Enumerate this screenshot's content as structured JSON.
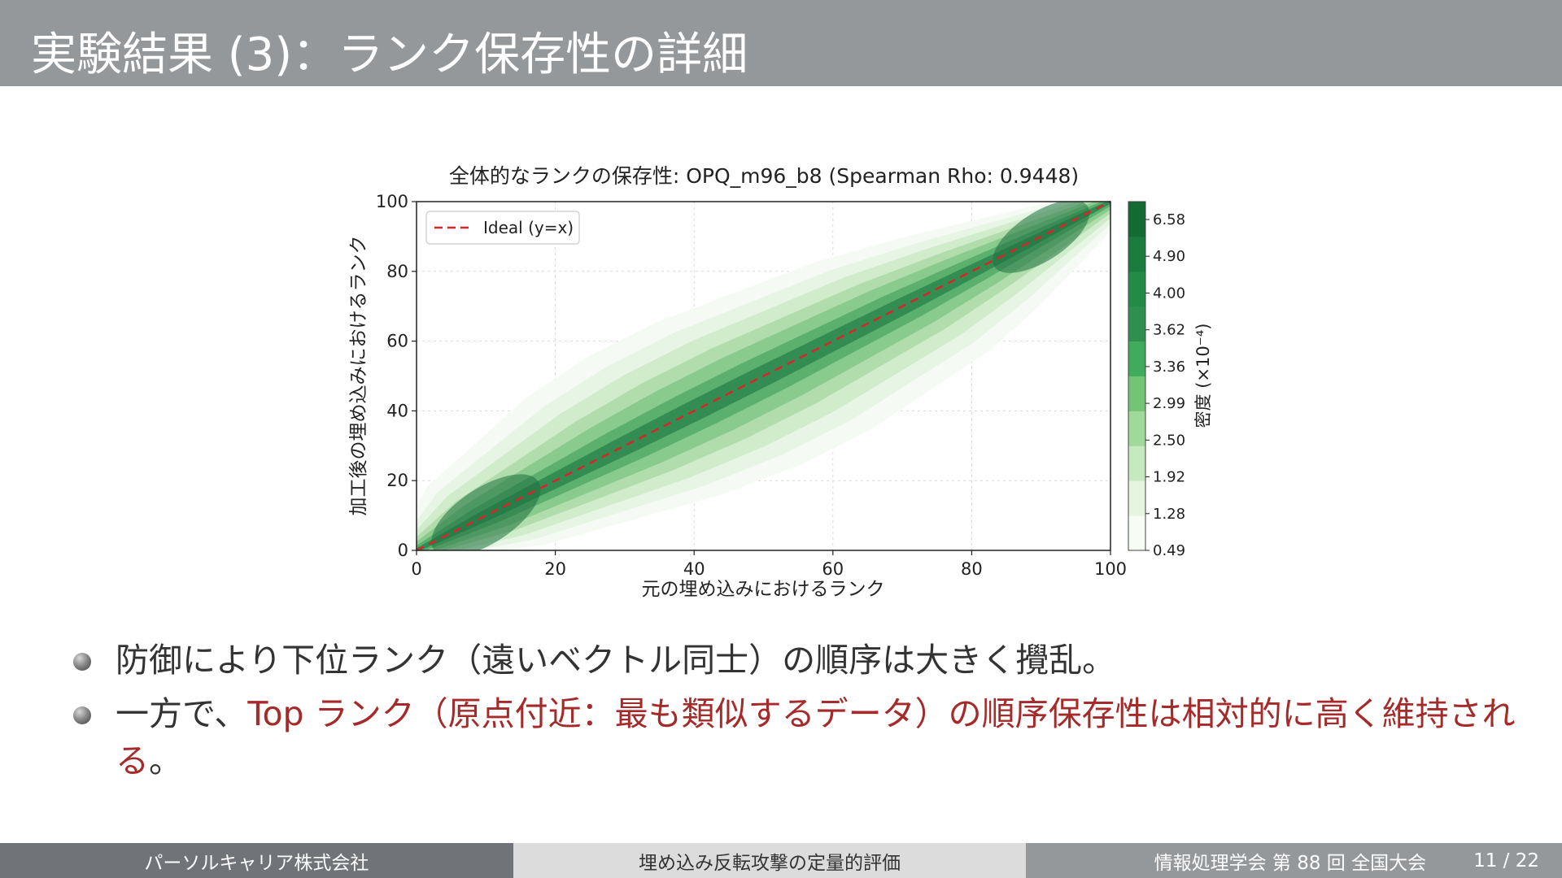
{
  "slide": {
    "title": "実験結果 (3)：ランク保存性の詳細"
  },
  "chart_data": {
    "type": "heatmap",
    "title": "全体的なランクの保存性: OPQ_m96_b8 (Spearman Rho: 0.9448)",
    "xlabel": "元の埋め込みにおけるランク",
    "ylabel": "加工後の埋め込みにおけるランク",
    "xlim": [
      0,
      100
    ],
    "ylim": [
      0,
      100
    ],
    "xticks": [
      "0",
      "20",
      "40",
      "60",
      "80",
      "100"
    ],
    "yticks": [
      "0",
      "20",
      "40",
      "60",
      "80",
      "100"
    ],
    "grid": true,
    "legend_position": "upper-left",
    "legend": [
      "Ideal (y=x)"
    ],
    "ideal_line": {
      "name": "Ideal (y=x)",
      "color": "#d62728",
      "style": "dashed",
      "x": [
        0,
        100
      ],
      "y": [
        0,
        100
      ]
    },
    "colormap": "Greens",
    "colorbar_label": "密度 (×10⁻⁴)",
    "colorbar_ticks": [
      "6.58",
      "4.90",
      "4.00",
      "3.62",
      "3.36",
      "2.99",
      "2.50",
      "1.92",
      "1.28",
      "0.49"
    ],
    "density_ridge": {
      "x": [
        0,
        10,
        20,
        30,
        40,
        50,
        60,
        70,
        80,
        90,
        100
      ],
      "y_center": [
        0,
        10,
        20,
        30,
        40,
        50,
        60,
        70,
        80,
        90,
        100
      ],
      "half_width": [
        4,
        12,
        16,
        20,
        22,
        22,
        20,
        18,
        14,
        9,
        4
      ]
    }
  },
  "bullets": {
    "item1": "防御により下位ランク（遠いベクトル同士）の順序は大きく攪乱。",
    "item2_pre": "一方で、",
    "item2_hl": "Top ランク（原点付近：最も類似するデータ）の順序保存性は相対的に高く維持される",
    "item2_post": "。"
  },
  "footer": {
    "left": "パーソルキャリア株式会社",
    "center": "埋め込み反転攻撃の定量的評価",
    "right": "情報処理学会 第 88 回 全国大会",
    "page": "11 / 22"
  },
  "colors": {
    "title_bar": "#95989b",
    "highlight": "#a52a2a",
    "ideal_line": "#d62728"
  }
}
